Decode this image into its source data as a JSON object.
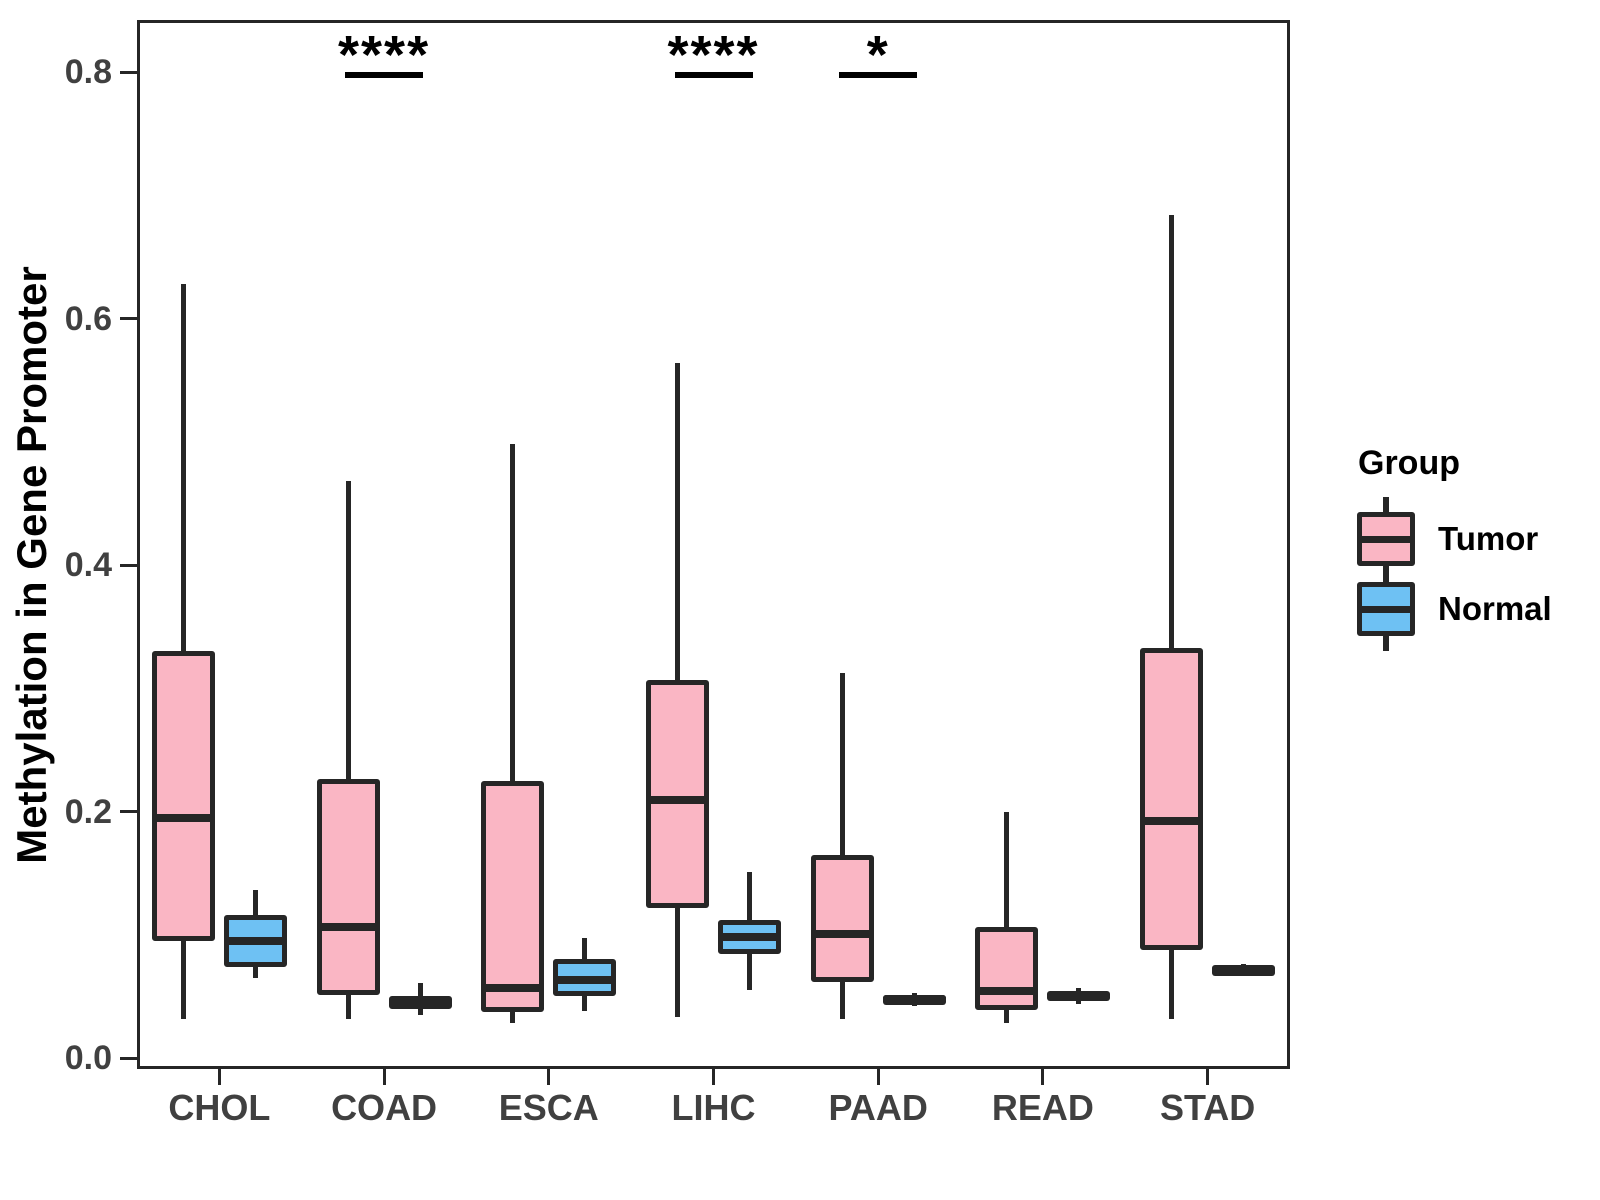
{
  "colors": {
    "tumor_fill": "#FAB6C4",
    "normal_fill": "#6EC1F3",
    "box_border": "#262626",
    "axis_text": "#404040",
    "title_text": "#000000"
  },
  "chart_data": {
    "type": "boxplot",
    "title": "",
    "ylabel": "Methylation in Gene Promoter",
    "xlabel": "",
    "categories": [
      "CHOL",
      "COAD",
      "ESCA",
      "LIHC",
      "PAAD",
      "READ",
      "STAD"
    ],
    "ylim": [
      0.0,
      0.85
    ],
    "yticks": [
      0.0,
      0.2,
      0.4,
      0.6,
      0.8
    ],
    "ytick_labels": [
      "0.0",
      "0.2",
      "0.4",
      "0.6",
      "0.8"
    ],
    "grid": false,
    "legend": {
      "title": "Group",
      "position": "right"
    },
    "series": [
      {
        "name": "Tumor",
        "fill": "#FAB6C4",
        "boxes": [
          {
            "category": "CHOL",
            "whisker_low": 0.032,
            "q1": 0.095,
            "median": 0.195,
            "q3": 0.33,
            "whisker_high": 0.628
          },
          {
            "category": "COAD",
            "whisker_low": 0.032,
            "q1": 0.051,
            "median": 0.106,
            "q3": 0.226,
            "whisker_high": 0.468
          },
          {
            "category": "ESCA",
            "whisker_low": 0.028,
            "q1": 0.037,
            "median": 0.057,
            "q3": 0.225,
            "whisker_high": 0.498
          },
          {
            "category": "LIHC",
            "whisker_low": 0.033,
            "q1": 0.122,
            "median": 0.209,
            "q3": 0.307,
            "whisker_high": 0.564
          },
          {
            "category": "PAAD",
            "whisker_low": 0.032,
            "q1": 0.062,
            "median": 0.101,
            "q3": 0.165,
            "whisker_high": 0.312
          },
          {
            "category": "READ",
            "whisker_low": 0.028,
            "q1": 0.039,
            "median": 0.054,
            "q3": 0.106,
            "whisker_high": 0.2
          },
          {
            "category": "STAD",
            "whisker_low": 0.032,
            "q1": 0.088,
            "median": 0.192,
            "q3": 0.333,
            "whisker_high": 0.684
          }
        ]
      },
      {
        "name": "Normal",
        "fill": "#6EC1F3",
        "boxes": [
          {
            "category": "CHOL",
            "whisker_low": 0.065,
            "q1": 0.074,
            "median": 0.095,
            "q3": 0.116,
            "whisker_high": 0.136
          },
          {
            "category": "COAD",
            "whisker_low": 0.035,
            "q1": 0.04,
            "median": 0.045,
            "q3": 0.05,
            "whisker_high": 0.061
          },
          {
            "category": "ESCA",
            "whisker_low": 0.038,
            "q1": 0.05,
            "median": 0.063,
            "q3": 0.08,
            "whisker_high": 0.097
          },
          {
            "category": "LIHC",
            "whisker_low": 0.055,
            "q1": 0.084,
            "median": 0.098,
            "q3": 0.112,
            "whisker_high": 0.151
          },
          {
            "category": "PAAD",
            "whisker_low": 0.042,
            "q1": 0.045,
            "median": 0.048,
            "q3": 0.051,
            "whisker_high": 0.053
          },
          {
            "category": "READ",
            "whisker_low": 0.044,
            "q1": 0.046,
            "median": 0.05,
            "q3": 0.054,
            "whisker_high": 0.057
          },
          {
            "category": "STAD",
            "whisker_low": 0.069,
            "q1": 0.07,
            "median": 0.0725,
            "q3": 0.075,
            "whisker_high": 0.076
          }
        ]
      }
    ],
    "significance": [
      {
        "category": "COAD",
        "label": "****"
      },
      {
        "category": "LIHC",
        "label": "****"
      },
      {
        "category": "PAAD",
        "label": "*"
      }
    ]
  }
}
